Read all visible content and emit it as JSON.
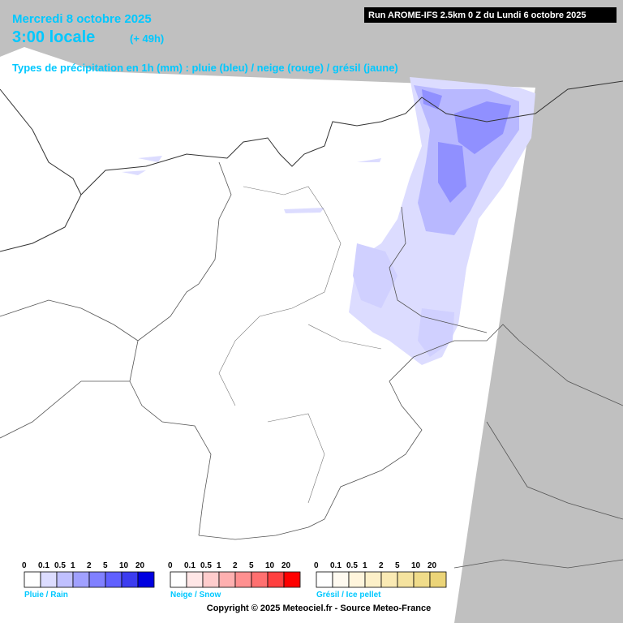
{
  "header": {
    "date": "Mercredi 8 octobre 2025",
    "time": "3:00 locale",
    "lead": "(+ 49h)",
    "subtitle": "Types de précipitation en 1h (mm) : pluie (bleu) / neige (rouge) / grésil (jaune)",
    "run": "Run AROME-IFS 2.5km 0 Z du Lundi 6 octobre 2025"
  },
  "legends": [
    {
      "label": "Pluie / Rain",
      "ticks": [
        "0",
        "0.1",
        "0.5",
        "1",
        "2",
        "5",
        "10",
        "20"
      ],
      "colors": [
        "#ffffff",
        "#dcdcff",
        "#c0c0ff",
        "#a0a0ff",
        "#8080ff",
        "#6060ff",
        "#3c3cf0",
        "#0000e0"
      ]
    },
    {
      "label": "Neige / Snow",
      "ticks": [
        "0",
        "0.1",
        "0.5",
        "1",
        "2",
        "5",
        "10",
        "20"
      ],
      "colors": [
        "#ffffff",
        "#ffe6e6",
        "#ffcccc",
        "#ffb0b0",
        "#ff9090",
        "#ff7070",
        "#ff4040",
        "#ff0000"
      ]
    },
    {
      "label": "Grésil / Ice pellet",
      "ticks": [
        "0",
        "0.1",
        "0.5",
        "1",
        "2",
        "5",
        "10",
        "20"
      ],
      "colors": [
        "#ffffff",
        "#fffaf0",
        "#fff5dc",
        "#fdf0c8",
        "#faeab4",
        "#f5e39f",
        "#f0dc8a",
        "#ebd478"
      ]
    }
  ],
  "copyright": "Copyright © 2025 Meteociel.fr - Source Meteo-France"
}
